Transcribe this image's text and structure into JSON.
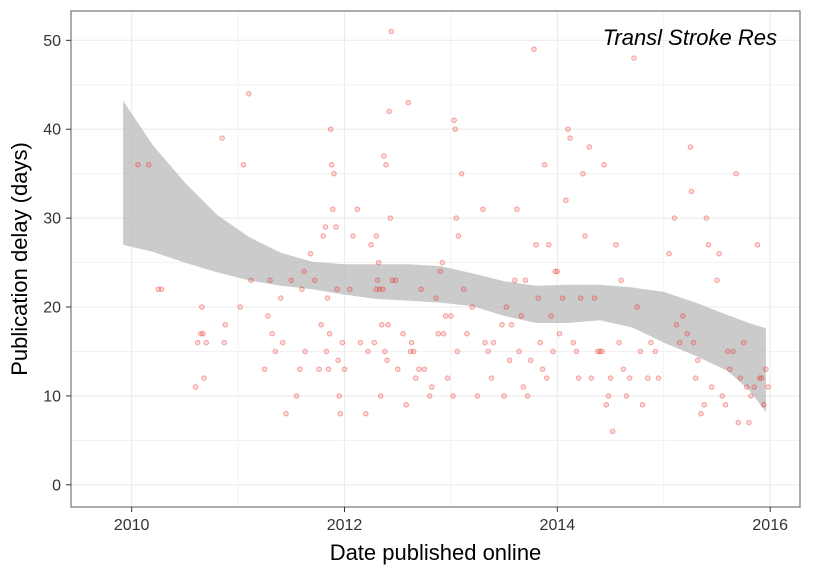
{
  "chart_data": {
    "type": "scatter",
    "title": "",
    "annotation": "Transl Stroke Res",
    "xlabel": "Date published online",
    "ylabel": "Publication delay (days)",
    "xlim": [
      2009.43,
      2016.28
    ],
    "ylim": [
      -2.5,
      53.3
    ],
    "x_ticks": [
      2010,
      2012,
      2014,
      2016
    ],
    "x_tick_labels": [
      "2010",
      "2012",
      "2014",
      "2016"
    ],
    "y_ticks": [
      0,
      10,
      20,
      30,
      40,
      50
    ],
    "y_tick_labels": [
      "0",
      "10",
      "20",
      "30",
      "40",
      "50"
    ],
    "grid": true,
    "colors": {
      "points": "#e8312a",
      "band": "#bdbdbd",
      "grid": "#ebebeb",
      "border": "#7f7f7f"
    },
    "confidence_band": {
      "x": [
        2009.92,
        2010.2,
        2010.5,
        2010.8,
        2011.1,
        2011.4,
        2011.7,
        2012.0,
        2012.3,
        2012.6,
        2012.9,
        2013.2,
        2013.5,
        2013.8,
        2014.1,
        2014.4,
        2014.7,
        2015.0,
        2015.3,
        2015.6,
        2015.8,
        2015.96
      ],
      "upper": [
        43.2,
        38.2,
        34.0,
        30.4,
        27.9,
        26.1,
        25.1,
        24.8,
        24.8,
        24.8,
        24.6,
        23.8,
        22.9,
        22.4,
        22.5,
        22.5,
        22.2,
        21.7,
        20.5,
        19.1,
        18.2,
        17.6
      ],
      "lower": [
        27.0,
        26.2,
        25.0,
        23.9,
        23.0,
        22.4,
        22.0,
        21.4,
        20.9,
        20.7,
        20.5,
        20.1,
        19.0,
        18.2,
        18.2,
        18.5,
        17.7,
        16.0,
        14.5,
        12.8,
        10.7,
        8.2
      ]
    },
    "points": [
      [
        2010.06,
        36
      ],
      [
        2010.16,
        36
      ],
      [
        2010.25,
        22
      ],
      [
        2010.28,
        22
      ],
      [
        2010.6,
        11
      ],
      [
        2010.62,
        16
      ],
      [
        2010.65,
        17
      ],
      [
        2010.66,
        20
      ],
      [
        2010.67,
        17
      ],
      [
        2010.68,
        12
      ],
      [
        2010.7,
        16
      ],
      [
        2010.85,
        39
      ],
      [
        2010.87,
        16
      ],
      [
        2010.88,
        18
      ],
      [
        2011.02,
        20
      ],
      [
        2011.05,
        36
      ],
      [
        2011.1,
        44
      ],
      [
        2011.12,
        23
      ],
      [
        2011.25,
        13
      ],
      [
        2011.28,
        19
      ],
      [
        2011.3,
        23
      ],
      [
        2011.32,
        17
      ],
      [
        2011.35,
        15
      ],
      [
        2011.4,
        21
      ],
      [
        2011.42,
        16
      ],
      [
        2011.45,
        8
      ],
      [
        2011.5,
        23
      ],
      [
        2011.55,
        10
      ],
      [
        2011.58,
        13
      ],
      [
        2011.6,
        22
      ],
      [
        2011.62,
        24
      ],
      [
        2011.63,
        15
      ],
      [
        2011.68,
        26
      ],
      [
        2011.72,
        23
      ],
      [
        2011.76,
        13
      ],
      [
        2011.78,
        18
      ],
      [
        2011.8,
        28
      ],
      [
        2011.82,
        29
      ],
      [
        2011.83,
        15
      ],
      [
        2011.84,
        21
      ],
      [
        2011.85,
        13
      ],
      [
        2011.86,
        17
      ],
      [
        2011.87,
        40
      ],
      [
        2011.88,
        36
      ],
      [
        2011.89,
        31
      ],
      [
        2011.9,
        35
      ],
      [
        2011.92,
        29
      ],
      [
        2011.93,
        22
      ],
      [
        2011.94,
        14
      ],
      [
        2011.95,
        10
      ],
      [
        2011.96,
        8
      ],
      [
        2011.98,
        16
      ],
      [
        2012.0,
        13
      ],
      [
        2012.05,
        22
      ],
      [
        2012.08,
        28
      ],
      [
        2012.12,
        31
      ],
      [
        2012.15,
        16
      ],
      [
        2012.2,
        8
      ],
      [
        2012.22,
        15
      ],
      [
        2012.25,
        27
      ],
      [
        2012.28,
        16
      ],
      [
        2012.3,
        22
      ],
      [
        2012.3,
        28
      ],
      [
        2012.31,
        23
      ],
      [
        2012.32,
        25
      ],
      [
        2012.33,
        22
      ],
      [
        2012.34,
        10
      ],
      [
        2012.35,
        18
      ],
      [
        2012.36,
        22
      ],
      [
        2012.37,
        37
      ],
      [
        2012.38,
        15
      ],
      [
        2012.39,
        36
      ],
      [
        2012.4,
        14
      ],
      [
        2012.41,
        18
      ],
      [
        2012.42,
        42
      ],
      [
        2012.43,
        30
      ],
      [
        2012.44,
        51
      ],
      [
        2012.45,
        23
      ],
      [
        2012.48,
        23
      ],
      [
        2012.5,
        13
      ],
      [
        2012.55,
        17
      ],
      [
        2012.58,
        9
      ],
      [
        2012.6,
        43
      ],
      [
        2012.62,
        15
      ],
      [
        2012.63,
        16
      ],
      [
        2012.65,
        15
      ],
      [
        2012.67,
        12
      ],
      [
        2012.7,
        13
      ],
      [
        2012.72,
        22
      ],
      [
        2012.75,
        13
      ],
      [
        2012.8,
        10
      ],
      [
        2012.82,
        11
      ],
      [
        2012.86,
        21
      ],
      [
        2012.88,
        17
      ],
      [
        2012.9,
        24
      ],
      [
        2012.92,
        25
      ],
      [
        2012.93,
        17
      ],
      [
        2012.95,
        19
      ],
      [
        2012.97,
        12
      ],
      [
        2013.0,
        19
      ],
      [
        2013.02,
        10
      ],
      [
        2013.03,
        41
      ],
      [
        2013.04,
        40
      ],
      [
        2013.05,
        30
      ],
      [
        2013.06,
        15
      ],
      [
        2013.07,
        28
      ],
      [
        2013.1,
        35
      ],
      [
        2013.12,
        22
      ],
      [
        2013.15,
        17
      ],
      [
        2013.2,
        20
      ],
      [
        2013.25,
        10
      ],
      [
        2013.3,
        31
      ],
      [
        2013.32,
        16
      ],
      [
        2013.35,
        15
      ],
      [
        2013.38,
        12
      ],
      [
        2013.4,
        16
      ],
      [
        2013.48,
        18
      ],
      [
        2013.5,
        10
      ],
      [
        2013.52,
        20
      ],
      [
        2013.55,
        14
      ],
      [
        2013.57,
        18
      ],
      [
        2013.6,
        23
      ],
      [
        2013.62,
        31
      ],
      [
        2013.64,
        15
      ],
      [
        2013.66,
        19
      ],
      [
        2013.68,
        11
      ],
      [
        2013.7,
        23
      ],
      [
        2013.72,
        10
      ],
      [
        2013.75,
        14
      ],
      [
        2013.78,
        49
      ],
      [
        2013.8,
        27
      ],
      [
        2013.82,
        21
      ],
      [
        2013.84,
        16
      ],
      [
        2013.86,
        13
      ],
      [
        2013.88,
        36
      ],
      [
        2013.9,
        12
      ],
      [
        2013.92,
        27
      ],
      [
        2013.94,
        19
      ],
      [
        2013.96,
        15
      ],
      [
        2013.98,
        24
      ],
      [
        2014.0,
        24
      ],
      [
        2014.02,
        17
      ],
      [
        2014.05,
        21
      ],
      [
        2014.08,
        32
      ],
      [
        2014.1,
        40
      ],
      [
        2014.12,
        39
      ],
      [
        2014.15,
        16
      ],
      [
        2014.18,
        15
      ],
      [
        2014.2,
        12
      ],
      [
        2014.22,
        21
      ],
      [
        2014.24,
        35
      ],
      [
        2014.26,
        28
      ],
      [
        2014.3,
        38
      ],
      [
        2014.32,
        12
      ],
      [
        2014.35,
        21
      ],
      [
        2014.38,
        15
      ],
      [
        2014.4,
        15
      ],
      [
        2014.42,
        15
      ],
      [
        2014.44,
        36
      ],
      [
        2014.46,
        9
      ],
      [
        2014.48,
        10
      ],
      [
        2014.5,
        12
      ],
      [
        2014.52,
        6
      ],
      [
        2014.55,
        27
      ],
      [
        2014.58,
        16
      ],
      [
        2014.6,
        23
      ],
      [
        2014.62,
        13
      ],
      [
        2014.65,
        10
      ],
      [
        2014.68,
        12
      ],
      [
        2014.72,
        48
      ],
      [
        2014.75,
        20
      ],
      [
        2014.78,
        15
      ],
      [
        2014.8,
        9
      ],
      [
        2014.85,
        12
      ],
      [
        2014.88,
        16
      ],
      [
        2014.92,
        15
      ],
      [
        2014.95,
        12
      ],
      [
        2015.05,
        26
      ],
      [
        2015.1,
        30
      ],
      [
        2015.12,
        18
      ],
      [
        2015.15,
        16
      ],
      [
        2015.18,
        19
      ],
      [
        2015.22,
        17
      ],
      [
        2015.25,
        38
      ],
      [
        2015.26,
        33
      ],
      [
        2015.28,
        16
      ],
      [
        2015.3,
        12
      ],
      [
        2015.32,
        14
      ],
      [
        2015.35,
        8
      ],
      [
        2015.38,
        9
      ],
      [
        2015.4,
        30
      ],
      [
        2015.42,
        27
      ],
      [
        2015.45,
        11
      ],
      [
        2015.5,
        23
      ],
      [
        2015.52,
        26
      ],
      [
        2015.55,
        10
      ],
      [
        2015.58,
        9
      ],
      [
        2015.6,
        15
      ],
      [
        2015.62,
        13
      ],
      [
        2015.65,
        15
      ],
      [
        2015.68,
        35
      ],
      [
        2015.7,
        7
      ],
      [
        2015.72,
        12
      ],
      [
        2015.75,
        16
      ],
      [
        2015.78,
        11
      ],
      [
        2015.8,
        7
      ],
      [
        2015.82,
        10
      ],
      [
        2015.85,
        11
      ],
      [
        2015.88,
        27
      ],
      [
        2015.9,
        12
      ],
      [
        2015.92,
        12
      ],
      [
        2015.94,
        9
      ],
      [
        2015.96,
        13
      ],
      [
        2015.98,
        11
      ]
    ]
  }
}
